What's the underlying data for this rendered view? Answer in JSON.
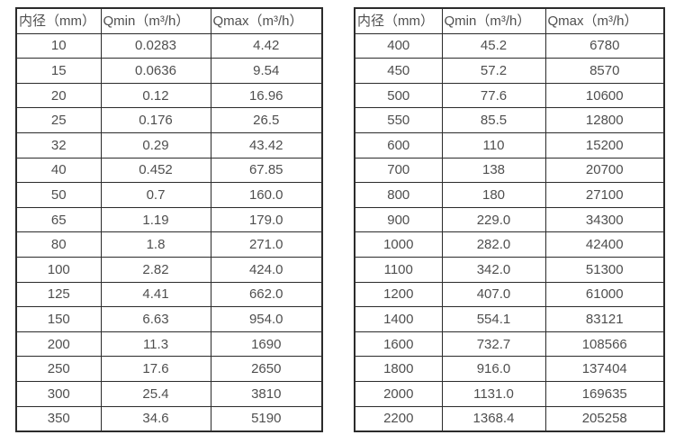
{
  "colors": {
    "page-bg": "#ffffff",
    "border-color": "#2b2b2b",
    "text-color": "#4f4f4f"
  },
  "tables": [
    {
      "title": "flow-spec-small-diameters",
      "headers": [
        "内径（mm）",
        "Qmin（m³/h）",
        "Qmax（m³/h）"
      ],
      "rows": [
        [
          "10",
          "0.0283",
          "4.42"
        ],
        [
          "15",
          "0.0636",
          "9.54"
        ],
        [
          "20",
          "0.12",
          "16.96"
        ],
        [
          "25",
          "0.176",
          "26.5"
        ],
        [
          "32",
          "0.29",
          "43.42"
        ],
        [
          "40",
          "0.452",
          "67.85"
        ],
        [
          "50",
          "0.7",
          "160.0"
        ],
        [
          "65",
          "1.19",
          "179.0"
        ],
        [
          "80",
          "1.8",
          "271.0"
        ],
        [
          "100",
          "2.82",
          "424.0"
        ],
        [
          "125",
          "4.41",
          "662.0"
        ],
        [
          "150",
          "6.63",
          "954.0"
        ],
        [
          "200",
          "11.3",
          "1690"
        ],
        [
          "250",
          "17.6",
          "2650"
        ],
        [
          "300",
          "25.4",
          "3810"
        ],
        [
          "350",
          "34.6",
          "5190"
        ]
      ]
    },
    {
      "title": "flow-spec-large-diameters",
      "headers": [
        "内径（mm）",
        "Qmin（m³/h）",
        "Qmax（m³/h）"
      ],
      "rows": [
        [
          "400",
          "45.2",
          "6780"
        ],
        [
          "450",
          "57.2",
          "8570"
        ],
        [
          "500",
          "77.6",
          "10600"
        ],
        [
          "550",
          "85.5",
          "12800"
        ],
        [
          "600",
          "110",
          "15200"
        ],
        [
          "700",
          "138",
          "20700"
        ],
        [
          "800",
          "180",
          "27100"
        ],
        [
          "900",
          "229.0",
          "34300"
        ],
        [
          "1000",
          "282.0",
          "42400"
        ],
        [
          "1100",
          "342.0",
          "51300"
        ],
        [
          "1200",
          "407.0",
          "61000"
        ],
        [
          "1400",
          "554.1",
          "83121"
        ],
        [
          "1600",
          "732.7",
          "108566"
        ],
        [
          "1800",
          "916.0",
          "137404"
        ],
        [
          "2000",
          "1131.0",
          "169635"
        ],
        [
          "2200",
          "1368.4",
          "205258"
        ]
      ]
    }
  ]
}
